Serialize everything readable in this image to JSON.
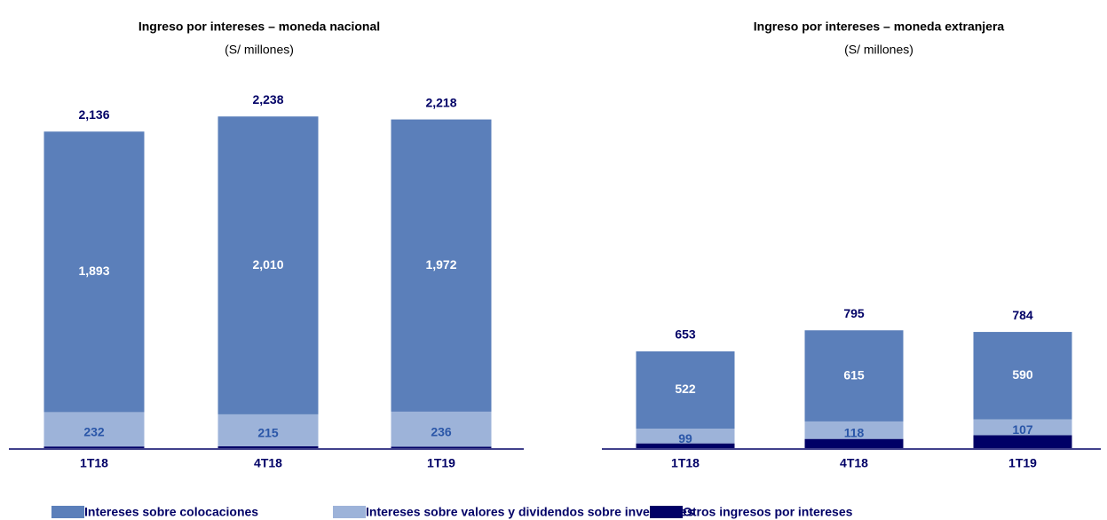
{
  "chart_data": [
    {
      "type": "bar",
      "stacked": true,
      "title": "Ingreso por intereses – moneda nacional",
      "subtitle": "(S/ millones)",
      "categories": [
        "1T18",
        "4T18",
        "1T19"
      ],
      "series": [
        {
          "name": "Otros ingresos por intereses",
          "color": "#000066",
          "values": [
            11,
            13,
            10
          ]
        },
        {
          "name": "Intereses sobre valores y dividendos sobre inversiones",
          "color": "#9db3d9",
          "values": [
            232,
            215,
            236
          ]
        },
        {
          "name": "Intereses sobre colocaciones",
          "color": "#5b7fba",
          "values": [
            1893,
            2010,
            1972
          ],
          "value_labels": [
            "1,893",
            "2,010",
            "1,972"
          ]
        }
      ],
      "totals": [
        2136,
        2238,
        2218
      ],
      "total_labels": [
        "2,136",
        "2,238",
        "2,218"
      ]
    },
    {
      "type": "bar",
      "stacked": true,
      "title": "Ingreso por intereses – moneda extranjera",
      "subtitle": "(S/ millones)",
      "categories": [
        "1T18",
        "4T18",
        "1T19"
      ],
      "series": [
        {
          "color": "#000066",
          "values": [
            32,
            62,
            87
          ]
        },
        {
          "color": "#9db3d9",
          "values": [
            99,
            118,
            107
          ]
        },
        {
          "color": "#5b7fba",
          "values": [
            522,
            615,
            590
          ]
        }
      ],
      "totals": [
        653,
        795,
        784
      ]
    }
  ]
}
